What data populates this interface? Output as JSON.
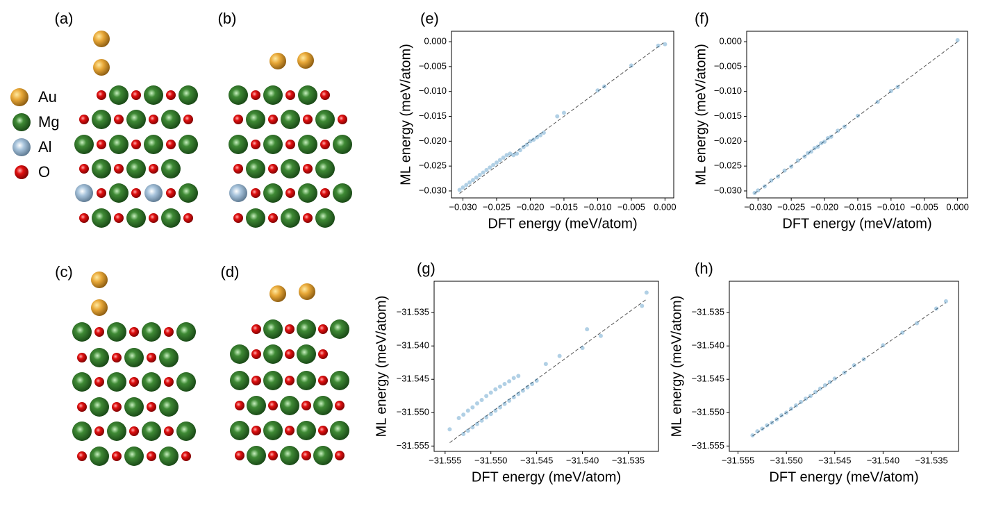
{
  "structure_panels": [
    "(a)",
    "(b)",
    "(c)",
    "(d)"
  ],
  "legend": [
    "Au",
    "Mg",
    "Al",
    "O"
  ],
  "chart_data": [
    {
      "type": "scatter",
      "panel_label": "(e)",
      "xlabel": "DFT energy (meV/atom)",
      "ylabel": "ML energy (meV/atom)",
      "color": "#1f77b4",
      "identity_line": true,
      "xlim": [
        -0.0317,
        0.0013
      ],
      "ylim": [
        -0.0314,
        0.0021
      ],
      "xticks": [
        {
          "value": -0.03,
          "label": "−0.030"
        },
        {
          "value": -0.025,
          "label": "−0.025"
        },
        {
          "value": -0.02,
          "label": "−0.020"
        },
        {
          "value": -0.015,
          "label": "−0.015"
        },
        {
          "value": -0.01,
          "label": "−0.010"
        },
        {
          "value": -0.005,
          "label": "−0.005"
        },
        {
          "value": 0,
          "label": "0.000"
        }
      ],
      "yticks": [
        {
          "value": -0.03,
          "label": "−0.030"
        },
        {
          "value": -0.025,
          "label": "−0.025"
        },
        {
          "value": -0.02,
          "label": "−0.020"
        },
        {
          "value": -0.015,
          "label": "−0.015"
        },
        {
          "value": -0.01,
          "label": "−0.010"
        },
        {
          "value": -0.005,
          "label": "−0.005"
        },
        {
          "value": 0,
          "label": "0.000"
        }
      ],
      "x": [
        -0.0305,
        -0.03,
        -0.0295,
        -0.029,
        -0.0285,
        -0.028,
        -0.0275,
        -0.027,
        -0.0265,
        -0.026,
        -0.0255,
        -0.025,
        -0.0245,
        -0.024,
        -0.0235,
        -0.023,
        -0.0225,
        -0.022,
        -0.0215,
        -0.021,
        -0.0205,
        -0.02,
        -0.0195,
        -0.019,
        -0.0185,
        -0.018,
        -0.016,
        -0.015,
        -0.01,
        -0.009,
        -0.005,
        -0.001,
        0
      ],
      "y": [
        -0.0298,
        -0.0293,
        -0.0288,
        -0.0283,
        -0.0278,
        -0.0273,
        -0.0268,
        -0.0263,
        -0.0258,
        -0.0253,
        -0.0248,
        -0.0243,
        -0.0238,
        -0.0233,
        -0.0228,
        -0.0225,
        -0.0228,
        -0.0225,
        -0.0218,
        -0.0212,
        -0.0207,
        -0.02,
        -0.0197,
        -0.0192,
        -0.0188,
        -0.0183,
        -0.015,
        -0.0143,
        -0.0098,
        -0.009,
        -0.0048,
        -0.0008,
        -0.0005
      ]
    },
    {
      "type": "scatter",
      "panel_label": "(f)",
      "xlabel": "DFT energy (meV/atom)",
      "ylabel": "ML energy (meV/atom)",
      "color": "#1f77b4",
      "identity_line": true,
      "xlim": [
        -0.0317,
        0.0015
      ],
      "ylim": [
        -0.0314,
        0.0021
      ],
      "xticks": [
        {
          "value": -0.03,
          "label": "−0.030"
        },
        {
          "value": -0.025,
          "label": "−0.025"
        },
        {
          "value": -0.02,
          "label": "−0.020"
        },
        {
          "value": -0.015,
          "label": "−0.015"
        },
        {
          "value": -0.01,
          "label": "−0.010"
        },
        {
          "value": -0.005,
          "label": "−0.005"
        },
        {
          "value": 0,
          "label": "0.000"
        }
      ],
      "yticks": [
        {
          "value": -0.03,
          "label": "−0.030"
        },
        {
          "value": -0.025,
          "label": "−0.025"
        },
        {
          "value": -0.02,
          "label": "−0.020"
        },
        {
          "value": -0.015,
          "label": "−0.015"
        },
        {
          "value": -0.01,
          "label": "−0.010"
        },
        {
          "value": -0.005,
          "label": "−0.005"
        },
        {
          "value": 0,
          "label": "0.000"
        }
      ],
      "x": [
        -0.0305,
        -0.03,
        -0.029,
        -0.028,
        -0.027,
        -0.026,
        -0.025,
        -0.024,
        -0.023,
        -0.0225,
        -0.022,
        -0.0215,
        -0.021,
        -0.0205,
        -0.02,
        -0.0195,
        -0.019,
        -0.018,
        -0.017,
        -0.015,
        -0.012,
        -0.01,
        -0.009,
        0
      ],
      "y": [
        -0.0304,
        -0.0299,
        -0.0291,
        -0.0279,
        -0.0271,
        -0.0259,
        -0.0251,
        -0.0239,
        -0.0231,
        -0.0224,
        -0.0221,
        -0.0214,
        -0.0211,
        -0.0204,
        -0.0201,
        -0.0194,
        -0.0191,
        -0.0179,
        -0.0171,
        -0.0149,
        -0.0121,
        -0.0099,
        -0.0091,
        0.0003
      ]
    },
    {
      "type": "scatter",
      "panel_label": "(g)",
      "xlabel": "DFT energy (meV/atom)",
      "ylabel": "ML energy (meV/atom)",
      "color": "#1f77b4",
      "identity_line": true,
      "xlim": [
        -31.5562,
        -31.5317
      ],
      "ylim": [
        -31.5558,
        -31.5303
      ],
      "xticks": [
        {
          "value": -31.555,
          "label": "−31.555"
        },
        {
          "value": -31.55,
          "label": "−31.550"
        },
        {
          "value": -31.545,
          "label": "−31.545"
        },
        {
          "value": -31.54,
          "label": "−31.540"
        },
        {
          "value": -31.535,
          "label": "−31.535"
        }
      ],
      "yticks": [
        {
          "value": -31.555,
          "label": "−31.555"
        },
        {
          "value": -31.55,
          "label": "−31.550"
        },
        {
          "value": -31.545,
          "label": "−31.545"
        },
        {
          "value": -31.54,
          "label": "−31.540"
        },
        {
          "value": -31.535,
          "label": "−31.535"
        }
      ],
      "x": [
        -31.5535,
        -31.553,
        -31.5525,
        -31.552,
        -31.5515,
        -31.551,
        -31.5505,
        -31.55,
        -31.5495,
        -31.549,
        -31.5485,
        -31.548,
        -31.5475,
        -31.547,
        -31.553,
        -31.5525,
        -31.552,
        -31.5515,
        -31.551,
        -31.5505,
        -31.55,
        -31.5495,
        -31.549,
        -31.5485,
        -31.548,
        -31.5475,
        -31.547,
        -31.5465,
        -31.546,
        -31.5455,
        -31.545,
        -31.5545,
        -31.544,
        -31.5425,
        -31.54,
        -31.5395,
        -31.538,
        -31.5335,
        -31.533
      ],
      "y": [
        -31.5508,
        -31.5503,
        -31.5497,
        -31.5492,
        -31.5486,
        -31.5481,
        -31.5475,
        -31.547,
        -31.5465,
        -31.5461,
        -31.5457,
        -31.5453,
        -31.5448,
        -31.5445,
        -31.5532,
        -31.5527,
        -31.5522,
        -31.5517,
        -31.5512,
        -31.5507,
        -31.5502,
        -31.5497,
        -31.5492,
        -31.5487,
        -31.5482,
        -31.5477,
        -31.5472,
        -31.5467,
        -31.5462,
        -31.5457,
        -31.5452,
        -31.5525,
        -31.5427,
        -31.5415,
        -31.5403,
        -31.5375,
        -31.5385,
        -31.534,
        -31.532
      ]
    },
    {
      "type": "scatter",
      "panel_label": "(h)",
      "xlabel": "DFT energy (meV/atom)",
      "ylabel": "ML energy (meV/atom)",
      "color": "#1f77b4",
      "identity_line": true,
      "xlim": [
        -31.5559,
        -31.5322
      ],
      "ylim": [
        -31.5558,
        -31.5303
      ],
      "xticks": [
        {
          "value": -31.555,
          "label": "−31.555"
        },
        {
          "value": -31.55,
          "label": "−31.550"
        },
        {
          "value": -31.545,
          "label": "−31.545"
        },
        {
          "value": -31.54,
          "label": "−31.540"
        },
        {
          "value": -31.535,
          "label": "−31.535"
        }
      ],
      "yticks": [
        {
          "value": -31.555,
          "label": "−31.555"
        },
        {
          "value": -31.55,
          "label": "−31.550"
        },
        {
          "value": -31.545,
          "label": "−31.545"
        },
        {
          "value": -31.54,
          "label": "−31.540"
        },
        {
          "value": -31.535,
          "label": "−31.535"
        }
      ],
      "x": [
        -31.5535,
        -31.553,
        -31.5525,
        -31.552,
        -31.5515,
        -31.551,
        -31.5505,
        -31.55,
        -31.5495,
        -31.549,
        -31.5485,
        -31.548,
        -31.5475,
        -31.547,
        -31.5465,
        -31.546,
        -31.5455,
        -31.545,
        -31.544,
        -31.543,
        -31.542,
        -31.54,
        -31.538,
        -31.5365,
        -31.5345,
        -31.5335
      ],
      "y": [
        -31.5534,
        -31.5528,
        -31.5524,
        -31.5519,
        -31.5515,
        -31.551,
        -31.5504,
        -31.55,
        -31.5494,
        -31.5489,
        -31.5484,
        -31.5479,
        -31.5475,
        -31.5469,
        -31.5464,
        -31.5459,
        -31.5454,
        -31.5449,
        -31.544,
        -31.5429,
        -31.542,
        -31.5399,
        -31.538,
        -31.5366,
        -31.5344,
        -31.5333
      ]
    }
  ]
}
